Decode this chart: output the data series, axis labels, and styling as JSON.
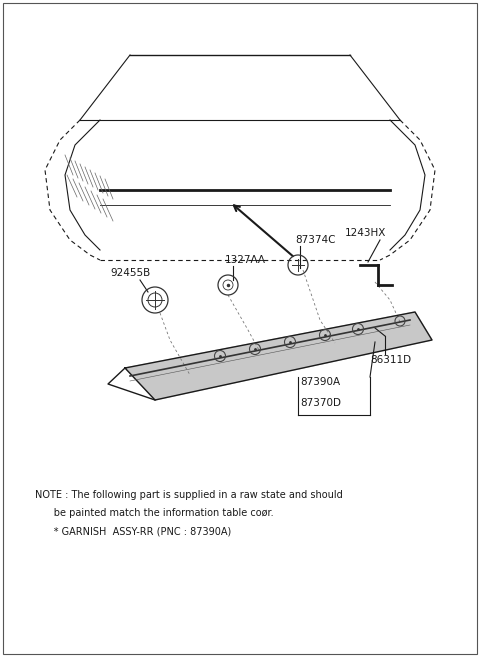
{
  "bg_color": "#ffffff",
  "fig_width": 4.8,
  "fig_height": 6.57,
  "dpi": 100,
  "note_line1": "NOTE : The following part is supplied in a raw state and should",
  "note_line2": "      be painted match the information table coør.",
  "note_line3": "      * GARNISH  ASSY-RR (PNC : 87390A)",
  "label_1243HX": "1243HX",
  "label_87374C": "87374C",
  "label_1327AA": "1327AA",
  "label_92455B": "92455B",
  "label_86311D": "86311D",
  "label_87390A": "87390A",
  "label_87370D": "87370D"
}
